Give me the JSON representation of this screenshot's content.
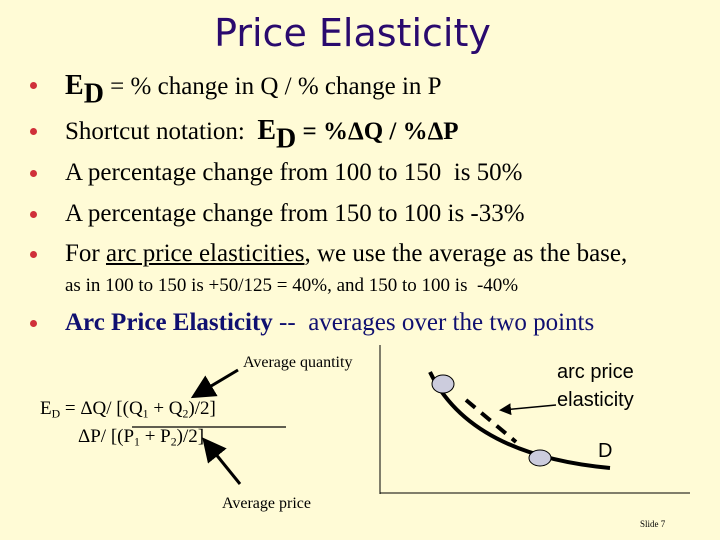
{
  "title": "Price Elasticity",
  "bullets": [
    {
      "symbol": "E",
      "subscript": "D",
      "text": " = % change in Q / % change in P"
    },
    {
      "text": "Shortcut notation:  ",
      "symbol": "E",
      "subscript": "D",
      "formula": " = %ΔQ / %ΔP"
    },
    {
      "text": "A percentage change from 100 to 150  is 50%"
    },
    {
      "text": "A percentage change from 150 to 100 is -33%"
    },
    {
      "text": "For ",
      "underlined": "arc price elasticities",
      "rest": ", we use the average as the base,",
      "detail": "as in 100 to 150 is +50/125 = 40%, and 150 to 100 is  -40%"
    },
    {
      "bold": "Arc Price Elasticity",
      "text": " --  averages over the two points"
    }
  ],
  "diagram": {
    "average_quantity": "Average quantity",
    "formula": {
      "symbol": "E",
      "subscript": "D",
      "numerator": [
        " = ΔQ/ [(Q",
        "1",
        " + Q",
        "2",
        ")/2]"
      ],
      "denominator": [
        "ΔP/ [(P",
        "1",
        " + P",
        "2",
        ")/2]"
      ]
    },
    "average_price": "Average price",
    "arc_label": [
      "arc price",
      "elasticity"
    ],
    "curve_label": "D"
  },
  "footer": "Slide 7"
}
